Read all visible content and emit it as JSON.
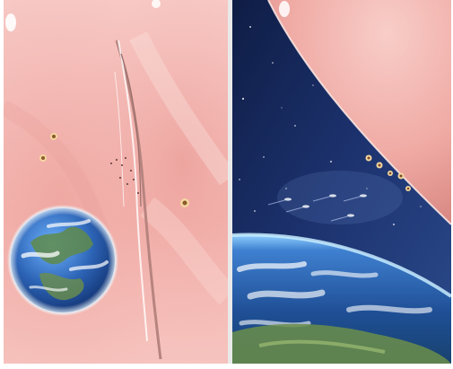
{
  "panels": [
    {
      "id": "left",
      "subjects": [
        "pink-giant",
        "earth",
        "small-ships"
      ]
    },
    {
      "id": "right",
      "subjects": [
        "space-starfield",
        "pink-giant",
        "earth-horizon",
        "fleet"
      ]
    }
  ],
  "colors": {
    "pink_light": "#f7c6c2",
    "pink_mid": "#eea29d",
    "pink_dark": "#d98882",
    "space_dark": "#0f1d45",
    "space_mid": "#22397a",
    "earth_blue": "#2d64b6",
    "earth_green": "#6b8e4a",
    "atmosphere": "#8fd0ff"
  }
}
